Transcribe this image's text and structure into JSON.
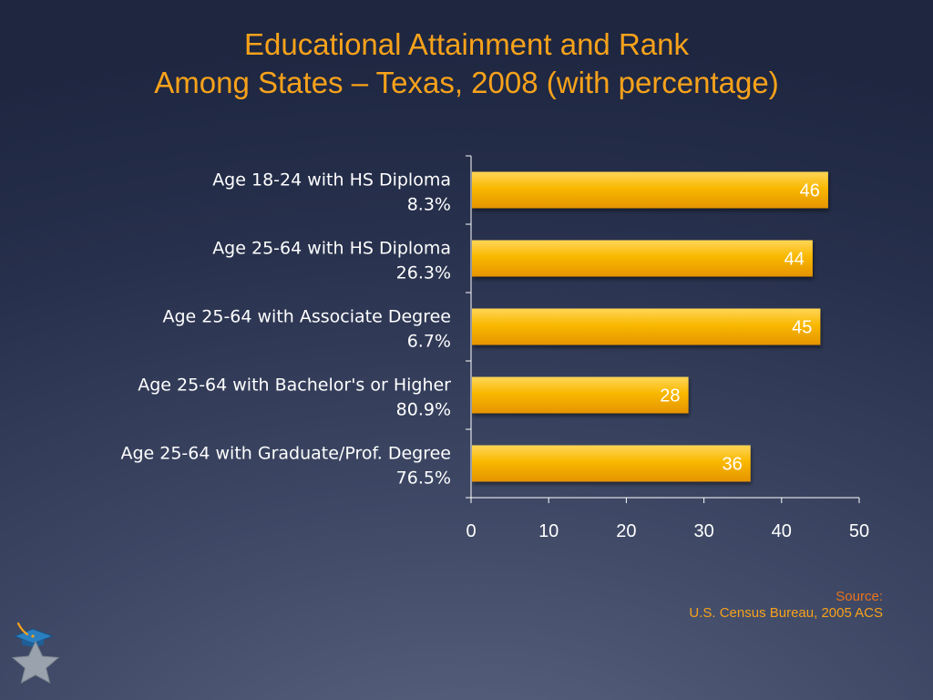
{
  "title": {
    "line1": "Educational Attainment and Rank",
    "line2": "Among States – Texas, 2008 (with percentage)"
  },
  "source": {
    "label": "Source:",
    "text": "U.S. Census Bureau, 2005 ACS"
  },
  "colors": {
    "bar": "#f7b500",
    "bar_highlight": "#ffd24a",
    "bar_shadow": "#d88a00",
    "title": "#f7a21b",
    "axis": "#ffffff",
    "text": "#ffffff"
  },
  "icons": [
    "graduation-cap-icon",
    "star-icon"
  ],
  "chart_data": {
    "type": "bar",
    "orientation": "horizontal",
    "categories": [
      {
        "label": "Age 18-24 with HS Diploma",
        "sublabel": "8.3%"
      },
      {
        "label": "Age 25-64 with HS Diploma",
        "sublabel": "26.3%"
      },
      {
        "label": "Age 25-64 with Associate Degree",
        "sublabel": "6.7%"
      },
      {
        "label": "Age 25-64 with Bachelor's or Higher",
        "sublabel": "80.9%"
      },
      {
        "label": "Age 25-64 with Graduate/Prof. Degree",
        "sublabel": "76.5%"
      }
    ],
    "values": [
      46,
      44,
      45,
      28,
      36
    ],
    "data_labels": [
      "46",
      "44",
      "45",
      "28",
      "36"
    ],
    "xlim": [
      0,
      50
    ],
    "xticks": [
      0,
      10,
      20,
      30,
      40,
      50
    ],
    "xtick_labels": [
      "0",
      "10",
      "20",
      "30",
      "40",
      "50"
    ],
    "grid": false,
    "legend": "none"
  }
}
